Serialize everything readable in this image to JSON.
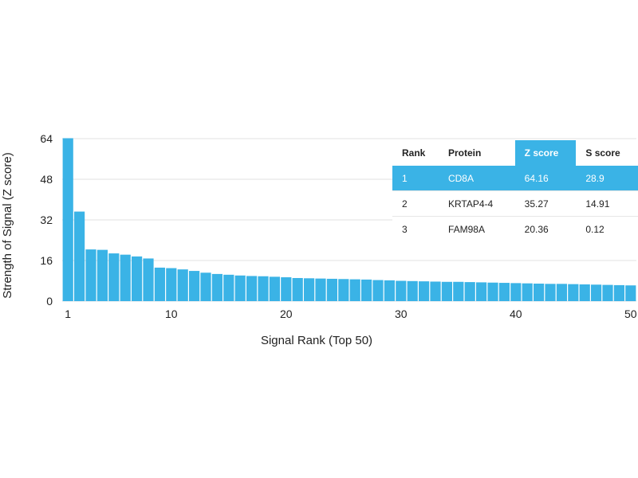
{
  "chart_data": {
    "type": "bar",
    "xlabel": "Signal Rank (Top 50)",
    "ylabel": "Strength of Signal (Z score)",
    "ylim": [
      0,
      64
    ],
    "yticks": [
      "0",
      "16",
      "32",
      "48",
      "64"
    ],
    "xticks": [
      "1",
      "10",
      "20",
      "30",
      "40",
      "50"
    ],
    "x": [
      1,
      2,
      3,
      4,
      5,
      6,
      7,
      8,
      9,
      10,
      11,
      12,
      13,
      14,
      15,
      16,
      17,
      18,
      19,
      20,
      21,
      22,
      23,
      24,
      25,
      26,
      27,
      28,
      29,
      30,
      31,
      32,
      33,
      34,
      35,
      36,
      37,
      38,
      39,
      40,
      41,
      42,
      43,
      44,
      45,
      46,
      47,
      48,
      49,
      50
    ],
    "values": [
      64.16,
      35.27,
      20.36,
      20.2,
      18.8,
      18.3,
      17.6,
      16.8,
      13.2,
      13.0,
      12.5,
      11.9,
      11.2,
      10.7,
      10.4,
      10.1,
      9.9,
      9.8,
      9.6,
      9.4,
      9.1,
      9.0,
      8.9,
      8.8,
      8.7,
      8.6,
      8.5,
      8.3,
      8.2,
      8.0,
      7.9,
      7.8,
      7.7,
      7.6,
      7.6,
      7.5,
      7.4,
      7.3,
      7.2,
      7.1,
      7.0,
      6.9,
      6.8,
      6.8,
      6.7,
      6.6,
      6.5,
      6.4,
      6.3,
      6.2
    ],
    "bar_color": "#3ab3e6",
    "grid": true
  },
  "table": {
    "headers": {
      "rank": "Rank",
      "protein": "Protein",
      "z": "Z score",
      "s": "S score"
    },
    "rows": [
      {
        "rank": "1",
        "protein": "CD8A",
        "z": "64.16",
        "s": "28.9"
      },
      {
        "rank": "2",
        "protein": "KRTAP4-4",
        "z": "35.27",
        "s": "14.91"
      },
      {
        "rank": "3",
        "protein": "FAM98A",
        "z": "20.36",
        "s": "0.12"
      }
    ],
    "highlight_color": "#3ab3e6"
  }
}
